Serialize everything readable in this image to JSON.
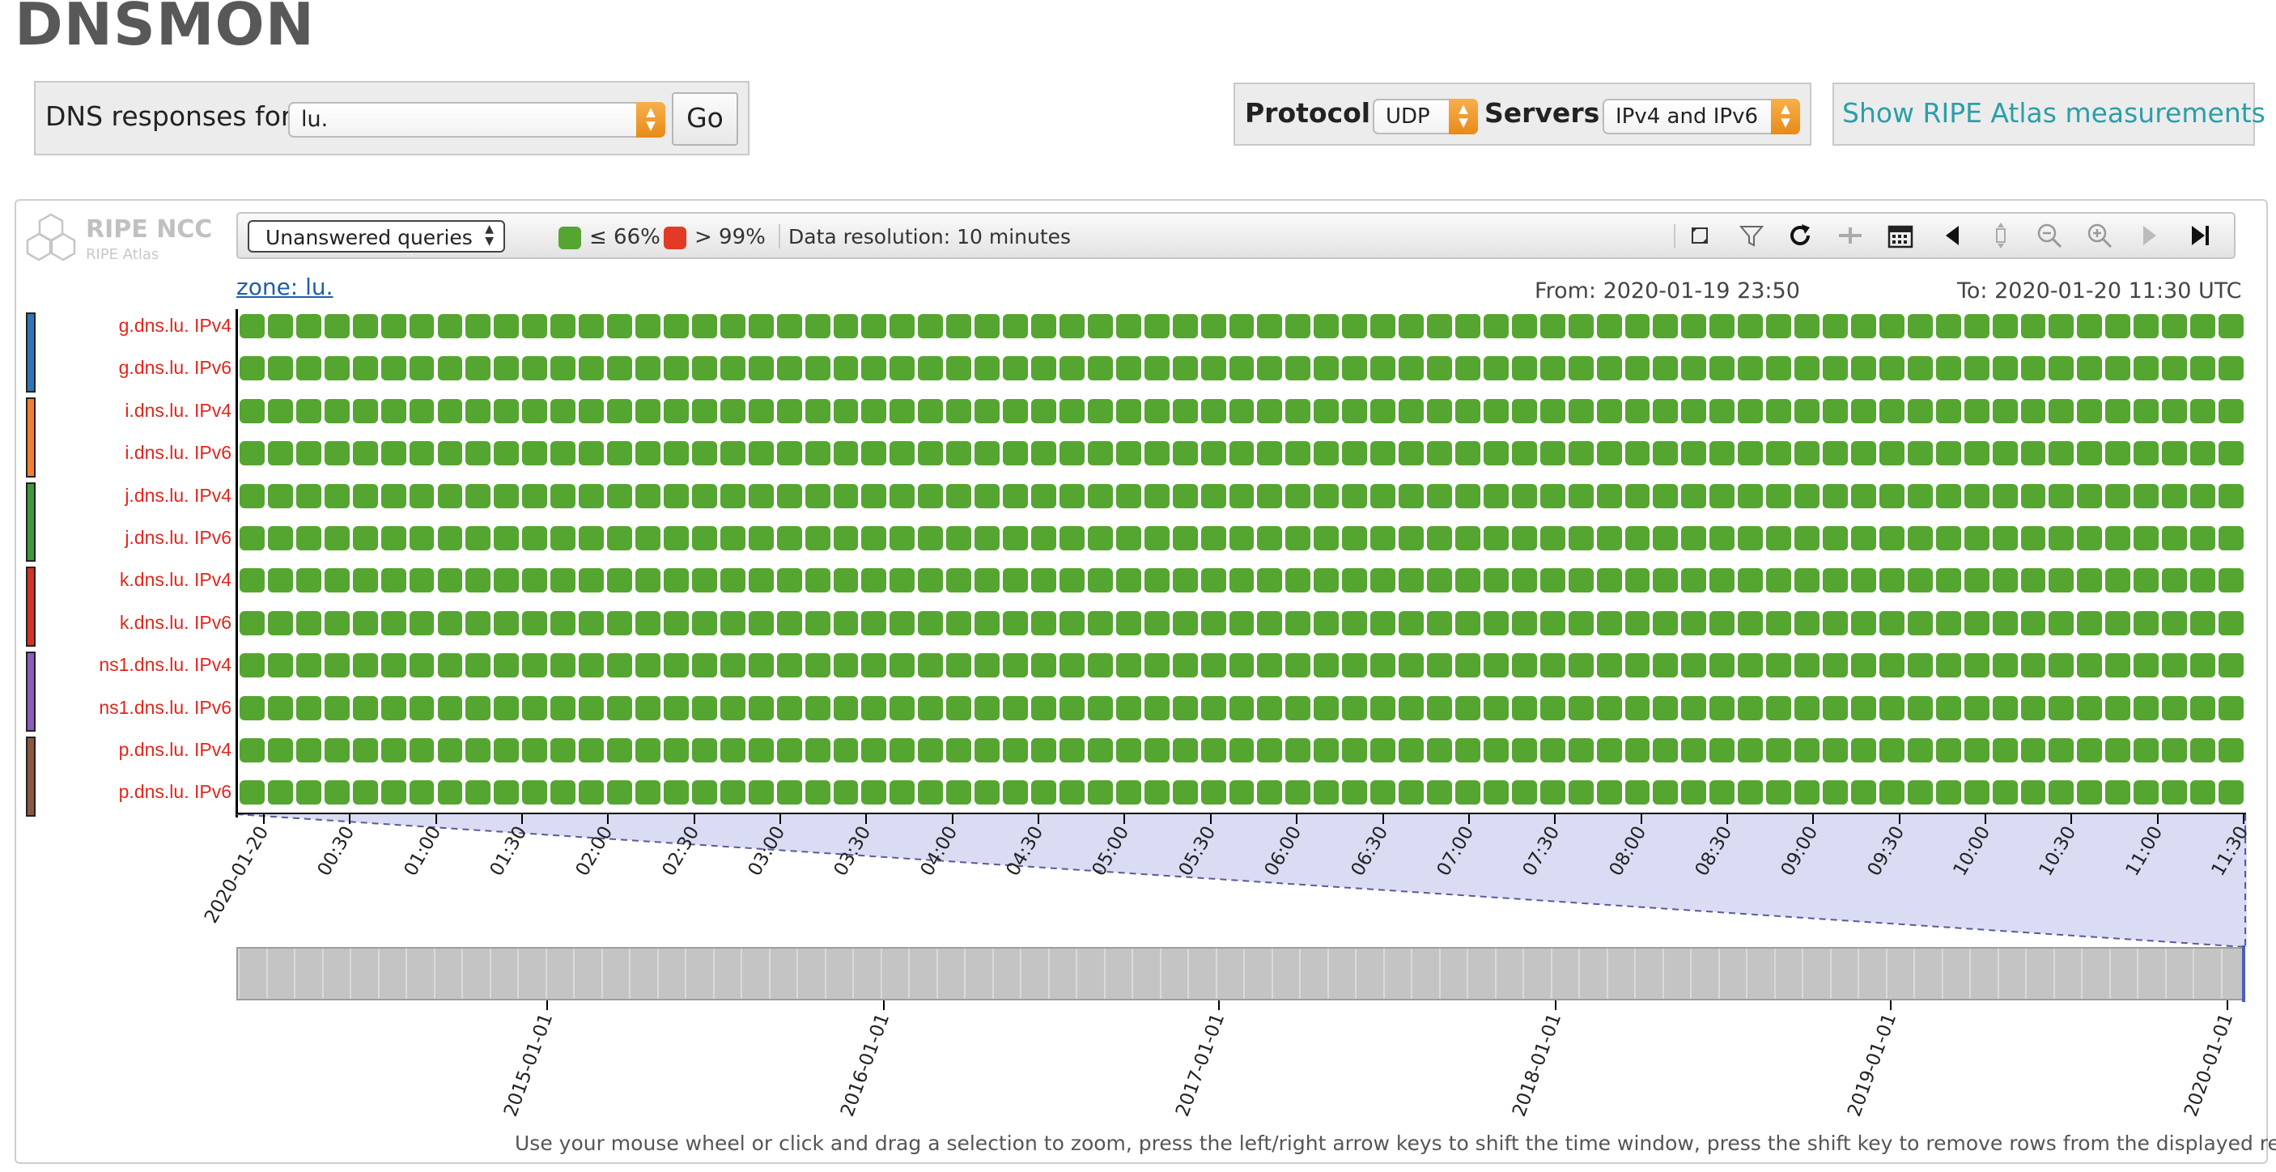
{
  "page": {
    "title": "DNSMON"
  },
  "query": {
    "label": "DNS responses for",
    "zone_value": "lu.",
    "go_label": "Go"
  },
  "protocol": {
    "label": "Protocol:",
    "value": "UDP"
  },
  "servers": {
    "label": "Servers:",
    "value": "IPv4 and IPv6"
  },
  "atlas_link": "Show RIPE Atlas measurements",
  "logo": {
    "name": "RIPE NCC",
    "sub": "RIPE Atlas"
  },
  "toolbar": {
    "view_select": "Unanswered queries",
    "legend": [
      {
        "label": "≤ 66%",
        "color": "#55a531"
      },
      {
        "label": "> 99%",
        "color": "#e23b25"
      }
    ],
    "resolution": "Data resolution: 10 minutes",
    "icons": [
      "fullscreen-icon",
      "filter-icon",
      "refresh-icon",
      "shrink-icon",
      "calendar-icon",
      "shift-left-icon",
      "zoom-extent-icon",
      "zoom-out-icon",
      "zoom-in-icon",
      "shift-right-icon",
      "go-to-end-icon"
    ]
  },
  "chart": {
    "zone_link": "zone: lu.",
    "from": "From: 2020-01-19 23:50",
    "to": "To: 2020-01-20 11:30 UTC",
    "cell_status_color": "#55a531",
    "cells_per_row": 71,
    "groups": [
      {
        "color": "#2f76b8",
        "rows": [
          "g.dns.lu. IPv4",
          "g.dns.lu. IPv6"
        ]
      },
      {
        "color": "#ef8130",
        "rows": [
          "i.dns.lu. IPv4",
          "i.dns.lu. IPv6"
        ]
      },
      {
        "color": "#3d9a39",
        "rows": [
          "j.dns.lu. IPv4",
          "j.dns.lu. IPv6"
        ]
      },
      {
        "color": "#d23227",
        "rows": [
          "k.dns.lu. IPv4",
          "k.dns.lu. IPv6"
        ]
      },
      {
        "color": "#8a5cbd",
        "rows": [
          "ns1.dns.lu. IPv4",
          "ns1.dns.lu. IPv6"
        ]
      },
      {
        "color": "#8b5742",
        "rows": [
          "p.dns.lu. IPv4",
          "p.dns.lu. IPv6"
        ]
      }
    ],
    "x_ticks": [
      "2020-01-20",
      "00:30",
      "01:00",
      "01:30",
      "02:00",
      "02:30",
      "03:00",
      "03:30",
      "04:00",
      "04:30",
      "05:00",
      "05:30",
      "06:00",
      "06:30",
      "07:00",
      "07:30",
      "08:00",
      "08:30",
      "09:00",
      "09:30",
      "10:00",
      "10:30",
      "11:00",
      "11:30"
    ],
    "overview_ticks": [
      "2015-01-01",
      "2016-01-01",
      "2017-01-01",
      "2018-01-01",
      "2019-01-01",
      "2020-01-01"
    ]
  },
  "hint": "Use your mouse wheel or click and drag a selection to zoom, press the left/right arrow keys to shift the time window, press the shift key to remove rows from the displayed results"
}
